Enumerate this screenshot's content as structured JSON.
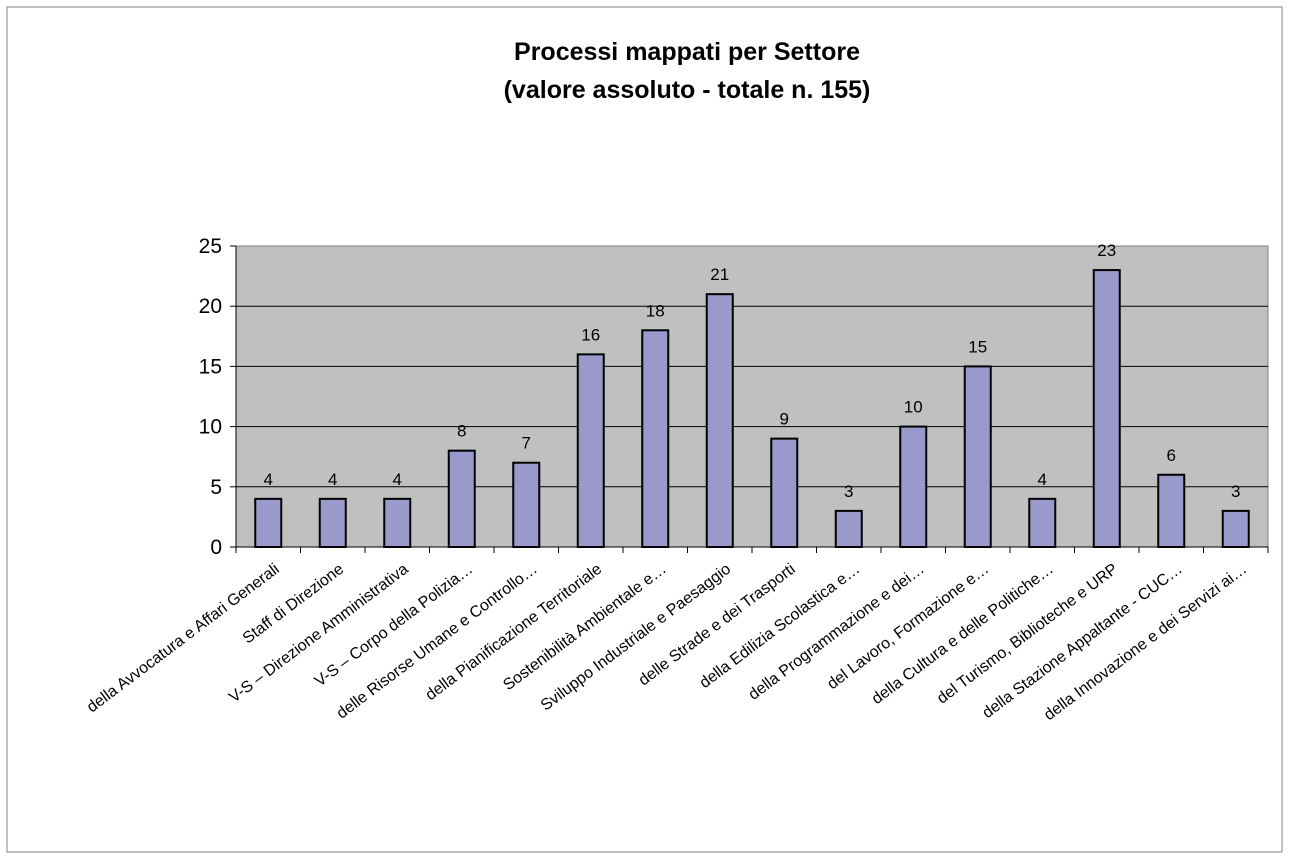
{
  "chart_data": {
    "type": "bar",
    "title": "Processi mappati per Settore",
    "subtitle": "(valore assoluto - totale n. 155)",
    "xlabel": "",
    "ylabel": "",
    "ylim": [
      0,
      25
    ],
    "yticks": [
      0,
      5,
      10,
      15,
      20,
      25
    ],
    "grid": true,
    "legend": "none",
    "plot_background": "#c0c0c0",
    "bar_color": "#9999cc",
    "categories": [
      "della Avvocatura e Affari Generali",
      "Staff di Direzione",
      "V-S – Direzione Amministrativa",
      "V-S – Corpo della Polizia…",
      "delle Risorse Umane e Controllo…",
      "della Pianificazione Territoriale",
      "Sostenibilità Ambientale e…",
      "Sviluppo Industriale e Paesaggio",
      "delle Strade e dei Trasporti",
      "della Edilizia Scolastica e…",
      "della Programmazione e dei…",
      "del Lavoro, Formazione e…",
      "della Cultura e delle Politiche…",
      "del Turismo, Biblioteche e URP",
      "della Stazione Appaltante - CUC…",
      "della Innovazione e dei Servizi ai…"
    ],
    "values": [
      4,
      4,
      4,
      8,
      7,
      16,
      18,
      21,
      9,
      3,
      10,
      15,
      4,
      23,
      6,
      3
    ]
  }
}
